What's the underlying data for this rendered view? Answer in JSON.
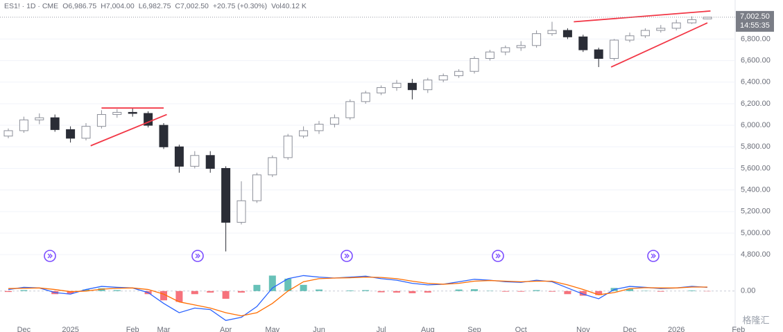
{
  "header": {
    "symbol": "ES1! · 1D · CME",
    "ohlc": [
      {
        "label": "O",
        "value": "6,986.75"
      },
      {
        "label": "H",
        "value": "7,004.00"
      },
      {
        "label": "L",
        "value": "6,982.75"
      },
      {
        "label": "C",
        "value": "7,002.50"
      }
    ],
    "change": "+20.75 (+0.30%)",
    "volume_label": "Vol",
    "volume": "40.12 K"
  },
  "chart_data": {
    "type": "candlestick",
    "categories": [
      null,
      "Dec",
      null,
      null,
      "2025",
      null,
      null,
      null,
      "Feb",
      null,
      "Mar",
      null,
      null,
      null,
      "Apr",
      null,
      null,
      "May",
      null,
      null,
      "Jun",
      null,
      null,
      null,
      "Jul",
      null,
      null,
      "Aug",
      null,
      null,
      "Sep",
      null,
      null,
      "Oct",
      null,
      null,
      null,
      "Nov",
      null,
      null,
      "Dec",
      null,
      null,
      "2026",
      null,
      null,
      null,
      "Feb"
    ],
    "open": [
      5900,
      5950,
      6050,
      6070,
      5960,
      5880,
      5990,
      6100,
      6120,
      6110,
      6000,
      5800,
      5620,
      5720,
      5600,
      5100,
      5300,
      5540,
      5700,
      5900,
      5950,
      6010,
      6070,
      6220,
      6300,
      6350,
      6390,
      6330,
      6420,
      6460,
      6500,
      6620,
      6680,
      6720,
      6740,
      6850,
      6880,
      6820,
      6700,
      6620,
      6790,
      6830,
      6880,
      6900,
      6950,
      6986.75,
      null,
      null
    ],
    "high": [
      5970,
      6080,
      6110,
      6100,
      5990,
      6020,
      6140,
      6150,
      6160,
      6130,
      6020,
      5820,
      5760,
      5760,
      5620,
      5480,
      5560,
      5720,
      5920,
      5990,
      6040,
      6100,
      6240,
      6320,
      6370,
      6420,
      6430,
      6440,
      6480,
      6520,
      6640,
      6700,
      6740,
      6780,
      6880,
      6960,
      6900,
      6840,
      6720,
      6800,
      6860,
      6900,
      6930,
      6980,
      7010,
      7004,
      null,
      null
    ],
    "low": [
      5880,
      5930,
      6010,
      5940,
      5840,
      5860,
      5970,
      6070,
      6080,
      5980,
      5780,
      5560,
      5600,
      5560,
      4830,
      5080,
      5280,
      5520,
      5680,
      5880,
      5920,
      5980,
      6050,
      6200,
      6280,
      6320,
      6240,
      6300,
      6400,
      6440,
      6480,
      6600,
      6650,
      6690,
      6720,
      6830,
      6800,
      6680,
      6540,
      6600,
      6770,
      6810,
      6860,
      6880,
      6940,
      6982.75,
      null,
      null
    ],
    "close": [
      5950,
      6050,
      6070,
      5960,
      5880,
      5990,
      6100,
      6120,
      6110,
      6000,
      5800,
      5620,
      5720,
      5600,
      5100,
      5300,
      5540,
      5700,
      5900,
      5950,
      6010,
      6070,
      6220,
      6300,
      6350,
      6390,
      6330,
      6420,
      6460,
      6500,
      6620,
      6680,
      6720,
      6740,
      6850,
      6880,
      6820,
      6700,
      6620,
      6790,
      6830,
      6880,
      6900,
      6950,
      6980,
      7002.5,
      null,
      null
    ],
    "up_color": "#8c8f99",
    "down_color": "#2a2d36",
    "ylim": [
      4660,
      7130
    ],
    "yticks": [
      {
        "value": 4800,
        "label": "4,800.00"
      },
      {
        "value": 5000,
        "label": "5,000.00"
      },
      {
        "value": 5200,
        "label": "5,200.00"
      },
      {
        "value": 5400,
        "label": "5,400.00"
      },
      {
        "value": 5600,
        "label": "5,600.00"
      },
      {
        "value": 5800,
        "label": "5,800.00"
      },
      {
        "value": 6000,
        "label": "6,000.00"
      },
      {
        "value": 6200,
        "label": "6,200.00"
      },
      {
        "value": 6400,
        "label": "6,400.00"
      },
      {
        "value": 6600,
        "label": "6,600.00"
      },
      {
        "value": 6800,
        "label": "6,800.00"
      }
    ],
    "grid": true,
    "last_price": {
      "value": 7002.5,
      "label": "7,002.50"
    },
    "countdown": "14:55:35",
    "trendline_color": "#f23645",
    "trendlines": [
      {
        "x": [
          5.3,
          10.2
        ],
        "y": [
          5810,
          6100
        ]
      },
      {
        "x": [
          6,
          10
        ],
        "y": [
          6160,
          6160
        ]
      },
      {
        "x": [
          38.8,
          45
        ],
        "y": [
          6540,
          6950
        ]
      },
      {
        "x": [
          36.4,
          45.2
        ],
        "y": [
          6960,
          7060
        ]
      }
    ],
    "macd": {
      "ylim": [
        -110,
        80
      ],
      "yticks": [
        {
          "value": 0,
          "label": "0.00"
        }
      ],
      "series": [
        {
          "name": "MACD",
          "color": "#2962ff",
          "values": [
            5,
            12,
            10,
            -5,
            -10,
            5,
            15,
            12,
            10,
            -5,
            -40,
            -70,
            -55,
            -60,
            -95,
            -85,
            -50,
            10,
            40,
            50,
            45,
            42,
            45,
            48,
            40,
            35,
            25,
            20,
            22,
            30,
            38,
            35,
            30,
            28,
            35,
            30,
            10,
            -10,
            -25,
            5,
            15,
            12,
            8,
            10,
            15,
            12,
            null,
            null
          ]
        },
        {
          "name": "Signal",
          "color": "#ff6d00",
          "values": [
            8,
            9,
            10,
            5,
            -2,
            0,
            6,
            9,
            10,
            5,
            -10,
            -35,
            -45,
            -55,
            -70,
            -80,
            -70,
            -40,
            0,
            30,
            40,
            42,
            43,
            45,
            44,
            40,
            32,
            25,
            22,
            25,
            32,
            34,
            32,
            30,
            32,
            32,
            20,
            5,
            -12,
            -5,
            8,
            11,
            10,
            10,
            13,
            13,
            null,
            null
          ]
        }
      ],
      "histogram": [
        -3,
        3,
        0,
        -10,
        -8,
        5,
        9,
        3,
        0,
        -10,
        -30,
        -35,
        -10,
        -5,
        -25,
        -5,
        20,
        50,
        40,
        20,
        5,
        0,
        2,
        3,
        -4,
        -5,
        -7,
        -5,
        0,
        5,
        6,
        1,
        -2,
        -2,
        3,
        -2,
        -10,
        -15,
        -13,
        10,
        7,
        1,
        -2,
        0,
        2,
        -1,
        null,
        null
      ],
      "hist_up_color": "#26a69a",
      "hist_down_color": "#f23645"
    }
  },
  "watermark": "格隆汇"
}
